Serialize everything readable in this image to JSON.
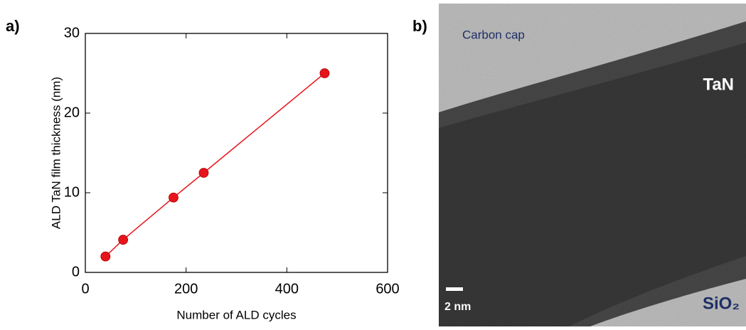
{
  "panel_labels": [
    "a)",
    "b)"
  ],
  "chart_data": {
    "type": "scatter",
    "x_label": "Number of ALD cycles",
    "y_label": "ALD TaN film thickness (nm)",
    "x": [
      40,
      75,
      175,
      235,
      475
    ],
    "values": [
      2,
      4.1,
      9.4,
      12.5,
      25
    ],
    "color": "#e8141c",
    "fit_line": true,
    "xlim": [
      0,
      600
    ],
    "ylim": [
      0,
      30
    ],
    "xticks": [
      0,
      200,
      400,
      600
    ],
    "yticks": [
      0,
      10,
      20,
      30
    ]
  },
  "image": {
    "labels": [
      "Carbon cap",
      "TaN",
      "SiO₂"
    ],
    "scale_bar": "2 nm"
  }
}
